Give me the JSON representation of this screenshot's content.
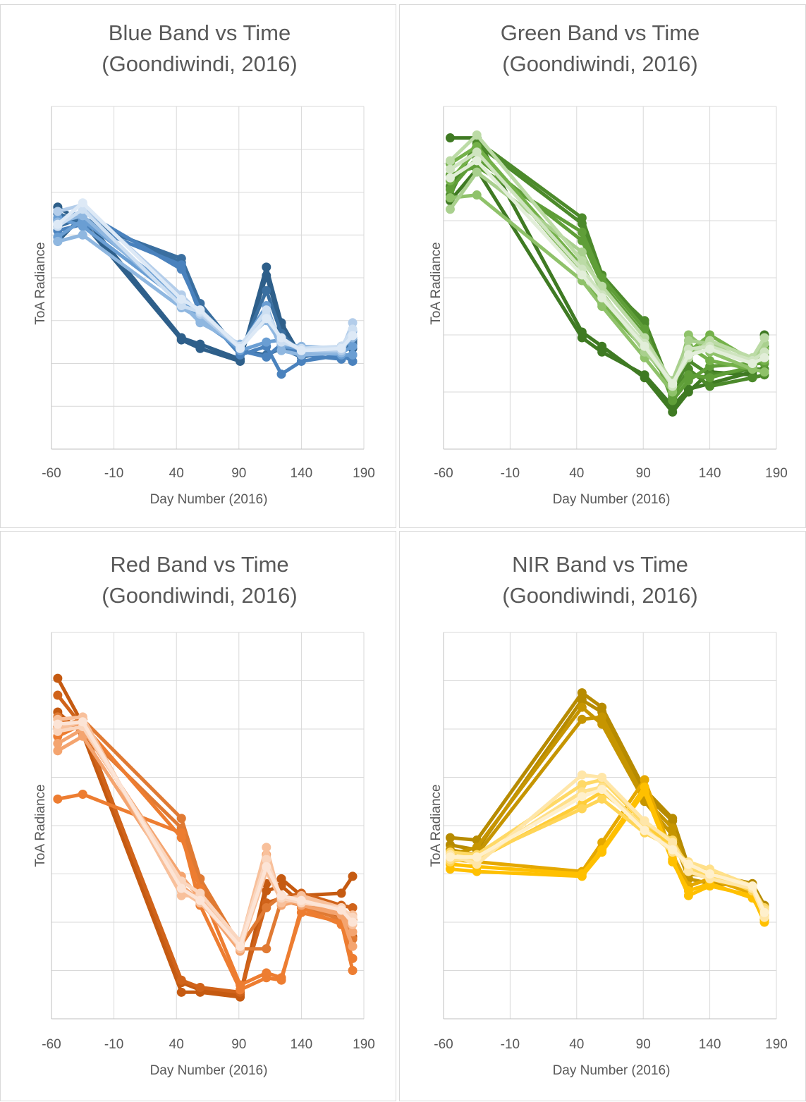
{
  "chart_data": [
    {
      "type": "line",
      "title_line1": "Blue Band vs Time",
      "title_line2": "(Goondiwindi, 2016)",
      "xlabel": "Day Number (2016)",
      "ylabel": "ToA Radiance",
      "xlim": [
        -60,
        190
      ],
      "xticks": [
        "-60",
        "-10",
        "40",
        "90",
        "140",
        "190"
      ],
      "ylim": [
        0,
        8
      ],
      "y_gridlines": 8,
      "x": [
        -55,
        -35,
        44,
        59,
        91,
        112,
        124,
        140,
        172,
        181
      ],
      "series": [
        {
          "color": "#2e5f8a",
          "values": [
            5.65,
            5.3,
            2.55,
            2.35,
            2.05,
            4.25,
            2.95,
            2.15,
            2.3,
            2.55
          ]
        },
        {
          "color": "#2e5f8a",
          "values": [
            4.85,
            5.45,
            2.6,
            2.45,
            2.1,
            4.05,
            2.85,
            2.2,
            2.35,
            2.35
          ]
        },
        {
          "color": "#3a6fa0",
          "values": [
            5.5,
            5.3,
            4.45,
            3.4,
            2.25,
            3.7,
            2.7,
            2.25,
            2.35,
            2.45
          ]
        },
        {
          "color": "#3a6fa0",
          "values": [
            5.2,
            5.4,
            4.35,
            3.3,
            2.3,
            2.2,
            2.35,
            2.15,
            2.4,
            2.5
          ]
        },
        {
          "color": "#4a82bd",
          "values": [
            5.35,
            5.55,
            4.2,
            3.25,
            2.2,
            2.4,
            1.75,
            2.05,
            2.2,
            2.05
          ]
        },
        {
          "color": "#4a82bd",
          "values": [
            5.1,
            5.25,
            4.3,
            3.15,
            2.3,
            2.15,
            2.45,
            2.2,
            2.1,
            2.2
          ]
        },
        {
          "color": "#6a9ed3",
          "values": [
            4.95,
            5.35,
            3.55,
            3.0,
            2.35,
            3.35,
            2.4,
            2.35,
            2.25,
            2.4
          ]
        },
        {
          "color": "#6a9ed3",
          "values": [
            5.4,
            5.2,
            3.45,
            3.1,
            2.3,
            2.5,
            2.55,
            2.3,
            2.2,
            2.2
          ]
        },
        {
          "color": "#8fb7e0",
          "values": [
            4.85,
            5.0,
            3.3,
            3.05,
            2.4,
            3.2,
            2.3,
            2.2,
            2.25,
            2.75
          ]
        },
        {
          "color": "#8fb7e0",
          "values": [
            5.3,
            5.45,
            3.4,
            2.95,
            2.45,
            3.0,
            2.45,
            2.4,
            2.35,
            2.6
          ]
        },
        {
          "color": "#b3cdea",
          "values": [
            5.55,
            5.7,
            3.6,
            3.15,
            2.35,
            3.1,
            2.55,
            2.3,
            2.3,
            2.95
          ]
        },
        {
          "color": "#cddff2",
          "values": [
            5.2,
            5.6,
            3.35,
            3.2,
            2.4,
            3.25,
            2.5,
            2.35,
            2.4,
            2.8
          ]
        },
        {
          "color": "#dde9f6",
          "values": [
            5.25,
            5.75,
            3.5,
            3.25,
            2.35,
            3.05,
            2.6,
            2.3,
            2.35,
            2.65
          ]
        }
      ]
    },
    {
      "type": "line",
      "title_line1": "Green Band vs Time",
      "title_line2": "(Goondiwindi, 2016)",
      "xlabel": "Day Number (2016)",
      "ylabel": "ToA Radiance",
      "xlim": [
        -60,
        190
      ],
      "xticks": [
        "-60",
        "-10",
        "40",
        "90",
        "140",
        "190"
      ],
      "ylim": [
        0,
        6
      ],
      "y_gridlines": 6,
      "x": [
        -55,
        -35,
        44,
        59,
        91,
        112,
        124,
        140,
        172,
        181
      ],
      "series": [
        {
          "color": "#3f7a23",
          "values": [
            5.45,
            5.45,
            2.05,
            1.8,
            1.25,
            0.65,
            1.0,
            1.35,
            1.3,
            2.0
          ]
        },
        {
          "color": "#3f7a23",
          "values": [
            4.35,
            4.9,
            1.95,
            1.7,
            1.3,
            0.75,
            1.05,
            1.15,
            1.35,
            1.8
          ]
        },
        {
          "color": "#4c8a2b",
          "values": [
            4.45,
            5.4,
            4.05,
            3.05,
            2.2,
            0.9,
            1.4,
            1.1,
            1.25,
            1.3
          ]
        },
        {
          "color": "#4c8a2b",
          "values": [
            4.6,
            5.35,
            3.95,
            2.95,
            2.25,
            1.0,
            1.55,
            1.3,
            1.4,
            1.4
          ]
        },
        {
          "color": "#5f9e38",
          "values": [
            4.8,
            4.95,
            3.8,
            3.0,
            2.1,
            0.85,
            1.2,
            1.45,
            1.5,
            1.5
          ]
        },
        {
          "color": "#5f9e38",
          "values": [
            4.55,
            5.1,
            3.65,
            2.9,
            2.0,
            0.95,
            1.3,
            1.25,
            1.45,
            1.65
          ]
        },
        {
          "color": "#74b14a",
          "values": [
            5.0,
            5.3,
            3.2,
            2.6,
            1.85,
            1.05,
            1.8,
            1.55,
            1.4,
            1.75
          ]
        },
        {
          "color": "#74b14a",
          "values": [
            4.7,
            5.25,
            3.1,
            2.55,
            1.75,
            1.1,
            1.7,
            2.0,
            1.55,
            1.55
          ]
        },
        {
          "color": "#8fc26a",
          "values": [
            4.4,
            4.45,
            2.95,
            2.5,
            1.6,
            1.0,
            2.0,
            1.7,
            1.4,
            1.35
          ]
        },
        {
          "color": "#a9d08e",
          "values": [
            4.2,
            4.85,
            3.45,
            2.75,
            1.7,
            1.2,
            1.9,
            1.85,
            1.5,
            1.85
          ]
        },
        {
          "color": "#bcdba6",
          "values": [
            5.05,
            5.5,
            3.3,
            2.85,
            1.95,
            1.15,
            1.6,
            1.9,
            1.6,
            1.95
          ]
        },
        {
          "color": "#cfe4c0",
          "values": [
            4.9,
            5.2,
            3.15,
            2.7,
            1.85,
            1.1,
            1.75,
            1.8,
            1.55,
            1.7
          ]
        },
        {
          "color": "#e2eed9",
          "values": [
            4.75,
            5.05,
            3.05,
            2.65,
            1.8,
            1.15,
            1.65,
            1.75,
            1.5,
            1.6
          ]
        }
      ]
    },
    {
      "type": "line",
      "title_line1": "Red Band vs Time",
      "title_line2": "(Goondiwindi, 2016)",
      "xlabel": "Day Number (2016)",
      "ylabel": "ToA Radiance",
      "xlim": [
        -60,
        190
      ],
      "xticks": [
        "-60",
        "-10",
        "40",
        "90",
        "140",
        "190"
      ],
      "ylim": [
        0,
        8
      ],
      "y_gridlines": 8,
      "x": [
        -55,
        -35,
        44,
        59,
        91,
        112,
        124,
        140,
        172,
        181
      ],
      "series": [
        {
          "color": "#c55a11",
          "values": [
            7.05,
            6.1,
            0.75,
            0.6,
            0.5,
            2.8,
            2.9,
            2.55,
            2.6,
            2.95
          ]
        },
        {
          "color": "#c55a11",
          "values": [
            6.35,
            5.9,
            0.55,
            0.55,
            0.45,
            2.65,
            2.75,
            2.4,
            2.1,
            1.7
          ]
        },
        {
          "color": "#d0631a",
          "values": [
            6.7,
            6.05,
            0.8,
            0.65,
            0.55,
            2.4,
            2.5,
            2.6,
            2.35,
            2.3
          ]
        },
        {
          "color": "#e07a33",
          "values": [
            6.05,
            6.2,
            4.15,
            2.9,
            1.5,
            2.3,
            2.55,
            2.4,
            2.25,
            2.05
          ]
        },
        {
          "color": "#e07a33",
          "values": [
            6.25,
            5.95,
            3.95,
            2.75,
            1.45,
            1.45,
            2.45,
            2.35,
            2.05,
            1.65
          ]
        },
        {
          "color": "#ed7d31",
          "values": [
            4.55,
            4.65,
            3.85,
            2.35,
            0.6,
            0.85,
            0.8,
            2.3,
            1.95,
            1.25
          ]
        },
        {
          "color": "#ed7d31",
          "values": [
            5.85,
            6.1,
            3.75,
            2.7,
            0.7,
            0.95,
            0.85,
            2.2,
            2.0,
            1.0
          ]
        },
        {
          "color": "#f4a46f",
          "values": [
            5.7,
            6.0,
            2.95,
            2.5,
            1.5,
            3.4,
            2.35,
            2.45,
            2.2,
            1.8
          ]
        },
        {
          "color": "#f4a46f",
          "values": [
            5.55,
            5.85,
            2.75,
            2.45,
            1.4,
            3.25,
            2.5,
            2.35,
            2.15,
            1.5
          ]
        },
        {
          "color": "#f8c09b",
          "values": [
            6.0,
            6.15,
            2.65,
            2.4,
            1.55,
            3.55,
            2.4,
            2.5,
            2.25,
            2.15
          ]
        },
        {
          "color": "#f8c09b",
          "values": [
            6.2,
            6.25,
            2.55,
            2.55,
            1.45,
            3.05,
            2.45,
            2.55,
            2.3,
            1.95
          ]
        },
        {
          "color": "#fad6bf",
          "values": [
            5.95,
            6.05,
            2.85,
            2.6,
            1.6,
            3.3,
            2.5,
            2.4,
            2.3,
            2.1
          ]
        },
        {
          "color": "#fce4d6",
          "values": [
            6.1,
            6.15,
            2.7,
            2.45,
            1.5,
            3.15,
            2.55,
            2.45,
            2.25,
            2.0
          ]
        }
      ]
    },
    {
      "type": "line",
      "title_line1": "NIR Band vs Time",
      "title_line2": "(Goondiwindi, 2016)",
      "xlabel": "Day Number (2016)",
      "ylabel": "ToA Radiance",
      "xlim": [
        -60,
        190
      ],
      "xticks": [
        "-60",
        "-10",
        "40",
        "90",
        "140",
        "190"
      ],
      "ylim": [
        0,
        8
      ],
      "y_gridlines": 8,
      "x": [
        -55,
        -35,
        44,
        59,
        91,
        112,
        124,
        140,
        172,
        181
      ],
      "series": [
        {
          "color": "#b78b00",
          "values": [
            3.75,
            3.7,
            6.75,
            6.45,
            4.75,
            4.15,
            3.15,
            3.0,
            2.8,
            2.35
          ]
        },
        {
          "color": "#b78b00",
          "values": [
            3.6,
            3.5,
            6.6,
            6.35,
            4.65,
            4.1,
            3.05,
            2.9,
            2.7,
            2.3
          ]
        },
        {
          "color": "#c69500",
          "values": [
            3.5,
            3.4,
            6.2,
            6.25,
            4.55,
            3.95,
            3.0,
            2.95,
            2.65,
            2.2
          ]
        },
        {
          "color": "#c69500",
          "values": [
            3.4,
            3.55,
            6.45,
            6.1,
            4.5,
            3.8,
            2.9,
            2.8,
            2.75,
            2.25
          ]
        },
        {
          "color": "#e5a800",
          "values": [
            3.3,
            3.25,
            3.05,
            3.65,
            4.95,
            3.4,
            2.75,
            2.9,
            2.6,
            2.05
          ]
        },
        {
          "color": "#ffc000",
          "values": [
            3.2,
            3.15,
            3.0,
            3.5,
            4.8,
            3.3,
            2.55,
            2.75,
            2.55,
            2.0
          ]
        },
        {
          "color": "#ffc000",
          "values": [
            3.1,
            3.05,
            2.95,
            3.45,
            4.7,
            3.25,
            2.65,
            2.8,
            2.5,
            2.1
          ]
        },
        {
          "color": "#ffcd37",
          "values": [
            3.35,
            3.3,
            4.45,
            4.7,
            4.0,
            3.6,
            3.2,
            3.05,
            2.7,
            2.2
          ]
        },
        {
          "color": "#ffd557",
          "values": [
            3.25,
            3.35,
            4.35,
            4.55,
            3.85,
            3.55,
            3.15,
            3.0,
            2.65,
            2.15
          ]
        },
        {
          "color": "#ffd966",
          "values": [
            3.45,
            3.4,
            4.85,
            4.95,
            4.05,
            3.7,
            3.1,
            2.95,
            2.7,
            2.3
          ]
        },
        {
          "color": "#ffe08a",
          "values": [
            3.3,
            3.3,
            4.7,
            4.8,
            3.95,
            3.45,
            3.25,
            3.1,
            2.75,
            2.25
          ]
        },
        {
          "color": "#ffe6a8",
          "values": [
            3.4,
            3.2,
            5.05,
            5.0,
            4.1,
            3.65,
            3.05,
            2.9,
            2.7,
            2.1
          ]
        },
        {
          "color": "#fff0cc",
          "values": [
            3.35,
            3.35,
            4.6,
            4.75,
            3.9,
            3.5,
            3.2,
            3.0,
            2.75,
            2.2
          ]
        }
      ]
    }
  ]
}
